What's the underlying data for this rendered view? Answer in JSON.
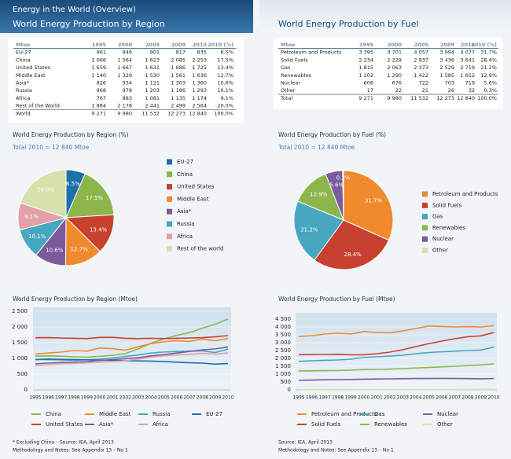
{
  "header": {
    "section": "Energy in the World (Overview)",
    "left_title": "World Energy Production by Region",
    "right_title": "World Energy Production by Fuel"
  },
  "tables": [
    {
      "header": [
        "Mtoe",
        "1995",
        "2000",
        "2005",
        "2009",
        "2010",
        "2010 (%)"
      ],
      "rows": [
        [
          "EU-27",
          "961",
          "946",
          "901",
          "817",
          "835",
          "6.5%"
        ],
        [
          "China",
          "1 066",
          "1 064",
          "1 623",
          "2 085",
          "2 253",
          "17.5%"
        ],
        [
          "United States",
          "1 659",
          "1 667",
          "1 631",
          "1 686",
          "1 725",
          "13.4%"
        ],
        [
          "Middle East",
          "1 140",
          "1 329",
          "1 530",
          "1 561",
          "1 636",
          "12.7%"
        ],
        [
          "Asia*",
          "826",
          "934",
          "1 121",
          "1 303",
          "1 360",
          "10.6%"
        ],
        [
          "Russia",
          "968",
          "978",
          "1 203",
          "1 186",
          "1 293",
          "10.1%"
        ],
        [
          "Africa",
          "767",
          "883",
          "1 081",
          "1 135",
          "1 174",
          "9.1%"
        ],
        [
          "Rest of the World",
          "1 884",
          "2 178",
          "2 441",
          "2 499",
          "2 564",
          "20.0%"
        ],
        [
          "World",
          "9 271",
          "9 980",
          "11 532",
          "12 273",
          "12 840",
          "100.0%"
        ]
      ]
    },
    {
      "header": [
        "Mtoe",
        "1995",
        "2000",
        "2005",
        "2009",
        "2010",
        "2010 (%)"
      ],
      "rows": [
        [
          "Petroleum and Products",
          "3 395",
          "3 701",
          "4 057",
          "3 994",
          "4 077",
          "31.7%"
        ],
        [
          "Solid Fuels",
          "2 234",
          "2 229",
          "2 937",
          "3 436",
          "3 641",
          "28.4%"
        ],
        [
          "Gas",
          "1 815",
          "2 063",
          "2 373",
          "2 529",
          "2 719",
          "21.2%"
        ],
        [
          "Renewables",
          "1 202",
          "1 290",
          "1 422",
          "1 585",
          "1 652",
          "12.9%"
        ],
        [
          "Nuclear",
          "608",
          "676",
          "722",
          "703",
          "719",
          "5.6%"
        ],
        [
          "Other",
          "17",
          "22",
          "21",
          "26",
          "32",
          "0.3%"
        ],
        [
          "Total",
          "9 271",
          "9 980",
          "11 532",
          "12 273",
          "12 840",
          "100.0%"
        ]
      ]
    }
  ],
  "chart_data": [
    {
      "type": "pie",
      "title": "World Energy Production by Region (%)",
      "subtitle": "Total 2010 = 12 840 Mtoe",
      "categories": [
        "EU-27",
        "China",
        "United States",
        "Middle East",
        "Asia*",
        "Russia",
        "Africa",
        "Rest of the world"
      ],
      "values": [
        6.5,
        17.5,
        13.4,
        12.7,
        10.6,
        10.1,
        9.1,
        20.0
      ],
      "value_labels": [
        "6.5%",
        "17.5%",
        "13.4%",
        "12.7%",
        "10.6%",
        "10.1%",
        "9.1%",
        "20.0%"
      ],
      "colors": [
        "#1f6fa8",
        "#8cb64c",
        "#c8412e",
        "#f08a2c",
        "#7b5b9c",
        "#47a6c0",
        "#e3a0a6",
        "#d5e2ab"
      ]
    },
    {
      "type": "pie",
      "title": "World Energy Production by Fuel (%)",
      "subtitle": "Total 2010 = 12 840 Mtoe",
      "categories": [
        "Petroleum and Products",
        "Solid Fuels",
        "Gas",
        "Renewables",
        "Nuclear",
        "Other"
      ],
      "values": [
        31.7,
        28.4,
        21.2,
        12.9,
        5.6,
        0.3
      ],
      "value_labels": [
        "31.7%",
        "28.4%",
        "21.2%",
        "12.9%",
        "5.6%",
        "0.3%"
      ],
      "colors": [
        "#f08a2c",
        "#c8412e",
        "#47a6c0",
        "#8cb64c",
        "#7b5b9c",
        "#d5e2ab"
      ]
    },
    {
      "type": "line",
      "title": "World Energy Production by Region (Mtoe)",
      "x": [
        1995,
        1996,
        1997,
        1998,
        1999,
        2000,
        2001,
        2002,
        2003,
        2004,
        2005,
        2006,
        2007,
        2008,
        2009,
        2010
      ],
      "xlim": [
        1995,
        2010
      ],
      "ylim": [
        0,
        2500
      ],
      "yticks": [
        0,
        500,
        {
          "value": 1000,
          "label": "1 000"
        },
        {
          "value": 1500,
          "label": "1 500"
        },
        {
          "value": 2000,
          "label": "2 000"
        },
        {
          "value": 2500,
          "label": "2 500"
        }
      ],
      "grid": true,
      "series": [
        {
          "name": "China",
          "color": "#8cb64c",
          "values": [
            1066,
            1080,
            1070,
            1050,
            1040,
            1064,
            1100,
            1150,
            1300,
            1480,
            1623,
            1730,
            1820,
            1960,
            2085,
            2253
          ]
        },
        {
          "name": "Middle East",
          "color": "#f08a2c",
          "values": [
            1140,
            1170,
            1200,
            1250,
            1230,
            1329,
            1310,
            1260,
            1370,
            1470,
            1530,
            1560,
            1540,
            1620,
            1561,
            1636
          ]
        },
        {
          "name": "Russia",
          "color": "#47a6c0",
          "values": [
            968,
            960,
            950,
            940,
            960,
            978,
            1010,
            1060,
            1110,
            1170,
            1203,
            1220,
            1230,
            1240,
            1186,
            1293
          ]
        },
        {
          "name": "EU-27",
          "color": "#1f6fa8",
          "values": [
            961,
            980,
            970,
            965,
            955,
            946,
            940,
            925,
            920,
            915,
            901,
            880,
            860,
            850,
            817,
            835
          ]
        },
        {
          "name": "United States",
          "color": "#c8412e",
          "values": [
            1659,
            1660,
            1650,
            1640,
            1630,
            1667,
            1670,
            1640,
            1630,
            1640,
            1631,
            1640,
            1650,
            1660,
            1686,
            1725
          ]
        },
        {
          "name": "Asia*",
          "color": "#7b5b9c",
          "values": [
            826,
            850,
            870,
            880,
            900,
            934,
            960,
            990,
            1020,
            1080,
            1121,
            1170,
            1220,
            1270,
            1303,
            1360
          ]
        },
        {
          "name": "Africa",
          "color": "#e3a0a6",
          "values": [
            767,
            800,
            830,
            840,
            860,
            883,
            900,
            920,
            980,
            1040,
            1081,
            1110,
            1130,
            1160,
            1135,
            1174
          ]
        }
      ]
    },
    {
      "type": "line",
      "title": "World Energy Production by Fuel (Mtoe)",
      "x": [
        1995,
        1996,
        1997,
        1998,
        1999,
        2000,
        2001,
        2002,
        2003,
        2004,
        2005,
        2006,
        2007,
        2008,
        2009,
        2010
      ],
      "xlim": [
        1995,
        2010
      ],
      "ylim": [
        0,
        4500
      ],
      "yticks": [
        0,
        500,
        {
          "value": 1000,
          "label": "1 000"
        },
        {
          "value": 1500,
          "label": "1 500"
        },
        {
          "value": 2000,
          "label": "2 000"
        },
        {
          "value": 2500,
          "label": "2 500"
        },
        {
          "value": 3000,
          "label": "3 000"
        },
        {
          "value": 3500,
          "label": "3 500"
        },
        {
          "value": 4000,
          "label": "4 000"
        },
        {
          "value": 4500,
          "label": "4 500"
        }
      ],
      "grid": true,
      "series": [
        {
          "name": "Petroleum and Products",
          "color": "#f08a2c",
          "values": [
            3395,
            3450,
            3550,
            3600,
            3550,
            3701,
            3650,
            3620,
            3750,
            3900,
            4057,
            4030,
            4000,
            4020,
            3994,
            4077
          ]
        },
        {
          "name": "Gas",
          "color": "#47a6c0",
          "values": [
            1815,
            1850,
            1880,
            1900,
            1950,
            2063,
            2100,
            2150,
            2200,
            2300,
            2373,
            2420,
            2460,
            2500,
            2529,
            2719
          ]
        },
        {
          "name": "Nuclear",
          "color": "#7b5b9c",
          "values": [
            608,
            620,
            640,
            650,
            660,
            676,
            690,
            700,
            710,
            720,
            722,
            730,
            725,
            715,
            703,
            719
          ]
        },
        {
          "name": "Solid Fuels",
          "color": "#c8412e",
          "values": [
            2234,
            2240,
            2250,
            2260,
            2230,
            2229,
            2300,
            2400,
            2550,
            2750,
            2937,
            3100,
            3250,
            3380,
            3436,
            3641
          ]
        },
        {
          "name": "Renewables",
          "color": "#8cb64c",
          "values": [
            1202,
            1210,
            1220,
            1230,
            1250,
            1290,
            1300,
            1320,
            1350,
            1390,
            1422,
            1460,
            1500,
            1540,
            1585,
            1652
          ]
        },
        {
          "name": "Other",
          "color": "#d5e2ab",
          "values": [
            17,
            18,
            18,
            19,
            20,
            22,
            22,
            22,
            21,
            21,
            21,
            22,
            24,
            25,
            26,
            32
          ]
        }
      ]
    }
  ],
  "footnotes": {
    "left": [
      "* Excluding China  –  Source: IEA, April 2013",
      "Methodology and Notes: See Appendix 13 – No 1"
    ],
    "right": [
      "Source: IEA, April 2013",
      "Methodology and Notes: See Appendix 13 – No 1"
    ]
  }
}
